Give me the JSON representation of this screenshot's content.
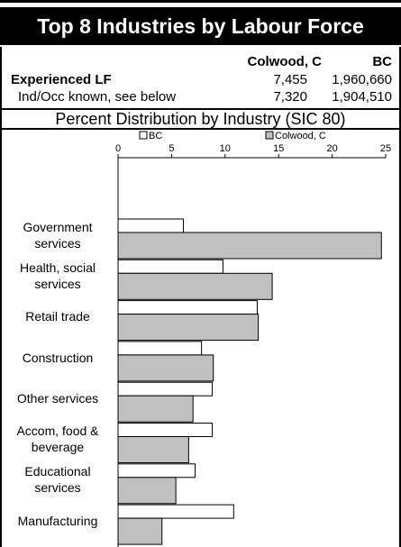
{
  "header": {
    "title": "Top 8 Industries by Labour Force"
  },
  "table": {
    "columns": [
      "Colwood, C",
      "BC"
    ],
    "rows": [
      {
        "label": "Experienced LF",
        "values": [
          "7,455",
          "1,960,660"
        ]
      },
      {
        "label": "Ind/Occ known, see below",
        "values": [
          "7,320",
          "1,904,510"
        ]
      }
    ]
  },
  "subtitle": "Percent Distribution by Industry (SIC 80)",
  "chart_data": {
    "type": "bar",
    "orientation": "horizontal",
    "categories": [
      "Government services",
      "Health, social services",
      "Retail trade",
      "Construction",
      "Other services",
      "Accom, food & beverage",
      "Educational services",
      "Manufacturing"
    ],
    "series": [
      {
        "name": "BC",
        "color": "#ffffff",
        "values": [
          6.1,
          9.8,
          13.0,
          7.8,
          8.8,
          8.8,
          7.2,
          10.8
        ]
      },
      {
        "name": "Colwood, C",
        "color": "#c0c0c0",
        "values": [
          24.6,
          14.4,
          13.1,
          8.9,
          7.0,
          6.6,
          5.4,
          4.1
        ]
      }
    ],
    "xlim": [
      0,
      25
    ],
    "xticks": [
      0,
      5,
      10,
      15,
      20,
      25
    ]
  }
}
